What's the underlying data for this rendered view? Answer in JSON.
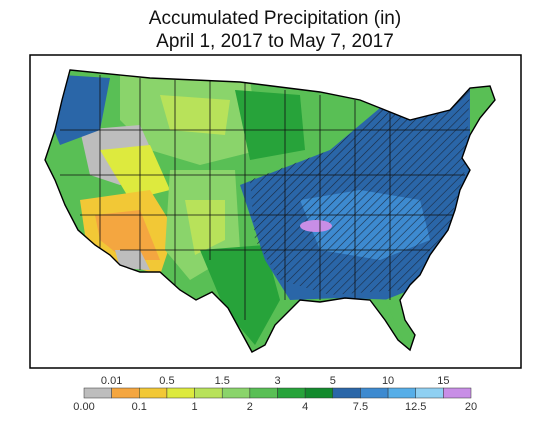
{
  "title": {
    "line1": "Accumulated Precipitation (in)",
    "line2": "April 1, 2017 to May 7, 2017"
  },
  "legend": {
    "bins": [
      {
        "color": "#bdbdbd"
      },
      {
        "color": "#f4a640"
      },
      {
        "color": "#f2c836"
      },
      {
        "color": "#ddea3e"
      },
      {
        "color": "#b8e25a"
      },
      {
        "color": "#8ad46b"
      },
      {
        "color": "#59bf55"
      },
      {
        "color": "#27a33a"
      },
      {
        "color": "#138a2d"
      },
      {
        "color": "#2a66a8"
      },
      {
        "color": "#3d8ad0"
      },
      {
        "color": "#56aee8"
      },
      {
        "color": "#8fd0f2"
      },
      {
        "color": "#c88ee6"
      }
    ],
    "top_labels": [
      "0.01",
      "0.5",
      "1.5",
      "3",
      "5",
      "10",
      "15"
    ],
    "bottom_labels": [
      "0.00",
      "0.1",
      "1",
      "2",
      "4",
      "7.5",
      "12.5",
      "20"
    ]
  }
}
